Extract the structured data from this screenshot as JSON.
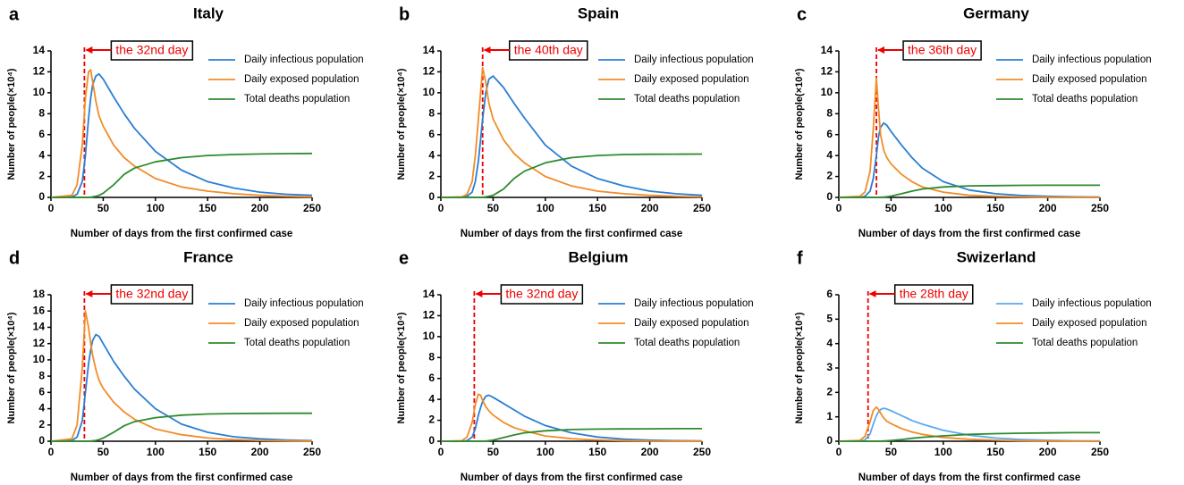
{
  "chart_data": [
    {
      "type": "line",
      "label": "a",
      "title": "Italy",
      "xlabel": "Number of days from the first confirmed case",
      "ylabel": "Number of people(×10⁴)",
      "annotation": {
        "text": "the 32nd day",
        "x": 32
      },
      "x": [
        0,
        20,
        25,
        30,
        33,
        36,
        38,
        40,
        43,
        46,
        50,
        60,
        70,
        80,
        100,
        125,
        150,
        175,
        200,
        225,
        250
      ],
      "series": [
        {
          "name": "Daily infectious population",
          "color": "#2a7fd4",
          "values": [
            0,
            0.05,
            0.3,
            1.5,
            4,
            7.5,
            9.5,
            10.8,
            11.6,
            11.8,
            11.3,
            9.6,
            8,
            6.6,
            4.4,
            2.6,
            1.5,
            0.9,
            0.5,
            0.3,
            0.2
          ]
        },
        {
          "name": "Daily exposed population",
          "color": "#f28c28",
          "values": [
            0,
            0.2,
            1.2,
            5,
            9.5,
            12,
            12.2,
            11,
            9.2,
            7.8,
            6.8,
            5,
            3.8,
            3,
            1.8,
            1,
            0.6,
            0.35,
            0.2,
            0.1,
            0.06
          ]
        },
        {
          "name": "Total deaths population",
          "color": "#2e8b2e",
          "values": [
            0,
            0,
            0,
            0,
            0,
            0,
            0.02,
            0.05,
            0.1,
            0.2,
            0.4,
            1.2,
            2.2,
            2.8,
            3.4,
            3.8,
            4,
            4.1,
            4.15,
            4.18,
            4.2
          ]
        }
      ],
      "xlim": [
        0,
        250
      ],
      "xticks": [
        0,
        50,
        100,
        150,
        200,
        250
      ],
      "ylim": [
        0,
        14
      ],
      "yticks": [
        0,
        2,
        4,
        6,
        8,
        10,
        12,
        14
      ]
    },
    {
      "type": "line",
      "label": "b",
      "title": "Spain",
      "xlabel": "Number of days from the first confirmed case",
      "ylabel": "Number of people(×10⁴)",
      "annotation": {
        "text": "the 40th day",
        "x": 40
      },
      "x": [
        0,
        20,
        25,
        30,
        33,
        36,
        38,
        40,
        43,
        46,
        50,
        60,
        70,
        80,
        100,
        125,
        150,
        175,
        200,
        225,
        250
      ],
      "series": [
        {
          "name": "Daily infectious population",
          "color": "#2a7fd4",
          "values": [
            0,
            0,
            0.1,
            0.5,
            1.5,
            3.5,
            5.5,
            7.5,
            10,
            11.3,
            11.6,
            10.5,
            9,
            7.6,
            5,
            3,
            1.8,
            1.1,
            0.6,
            0.35,
            0.2
          ]
        },
        {
          "name": "Daily exposed population",
          "color": "#f28c28",
          "values": [
            0,
            0.05,
            0.3,
            1.5,
            4,
            7.5,
            10,
            12.4,
            11,
            9,
            7.5,
            5.5,
            4.2,
            3.3,
            2,
            1.1,
            0.6,
            0.35,
            0.2,
            0.1,
            0.05
          ]
        },
        {
          "name": "Total deaths population",
          "color": "#2e8b2e",
          "values": [
            0,
            0,
            0,
            0,
            0,
            0,
            0,
            0.02,
            0.05,
            0.1,
            0.2,
            0.8,
            1.8,
            2.5,
            3.3,
            3.8,
            4,
            4.1,
            4.12,
            4.13,
            4.14
          ]
        }
      ],
      "xlim": [
        0,
        250
      ],
      "xticks": [
        0,
        50,
        100,
        150,
        200,
        250
      ],
      "ylim": [
        0,
        14
      ],
      "yticks": [
        0,
        2,
        4,
        6,
        8,
        10,
        12,
        14
      ]
    },
    {
      "type": "line",
      "label": "c",
      "title": "Germany",
      "xlabel": "Number of days from the first confirmed case",
      "ylabel": "Number of people(×10⁴)",
      "annotation": {
        "text": "the 36th day",
        "x": 36
      },
      "x": [
        0,
        20,
        25,
        30,
        33,
        36,
        38,
        40,
        43,
        46,
        50,
        60,
        70,
        80,
        100,
        125,
        150,
        175,
        200,
        225,
        250
      ],
      "series": [
        {
          "name": "Daily infectious population",
          "color": "#2a7fd4",
          "values": [
            0,
            0,
            0.1,
            0.6,
            1.8,
            4,
            5.8,
            6.7,
            7.1,
            6.9,
            6.3,
            5,
            3.8,
            2.8,
            1.5,
            0.7,
            0.35,
            0.18,
            0.1,
            0.05,
            0.03
          ]
        },
        {
          "name": "Daily exposed population",
          "color": "#f28c28",
          "values": [
            0,
            0.1,
            0.5,
            2.5,
            6.5,
            11.4,
            8.5,
            6,
            4.5,
            3.8,
            3.2,
            2.2,
            1.5,
            1,
            0.5,
            0.2,
            0.1,
            0.05,
            0.02,
            0.01,
            0
          ]
        },
        {
          "name": "Total deaths population",
          "color": "#2e8b2e",
          "values": [
            0,
            0,
            0,
            0,
            0,
            0,
            0,
            0.01,
            0.03,
            0.06,
            0.12,
            0.35,
            0.6,
            0.8,
            1,
            1.1,
            1.13,
            1.15,
            1.16,
            1.16,
            1.16
          ]
        }
      ],
      "xlim": [
        0,
        250
      ],
      "xticks": [
        0,
        50,
        100,
        150,
        200,
        250
      ],
      "ylim": [
        0,
        14
      ],
      "yticks": [
        0,
        2,
        4,
        6,
        8,
        10,
        12,
        14
      ]
    },
    {
      "type": "line",
      "label": "d",
      "title": "France",
      "xlabel": "Number of days from the first confirmed case",
      "ylabel": "Number of people(×10⁴)",
      "annotation": {
        "text": "the 32nd day",
        "x": 32
      },
      "x": [
        0,
        20,
        25,
        30,
        33,
        36,
        38,
        40,
        43,
        46,
        50,
        60,
        70,
        80,
        100,
        125,
        150,
        175,
        200,
        225,
        250
      ],
      "series": [
        {
          "name": "Daily infectious population",
          "color": "#2a7fd4",
          "values": [
            0,
            0.1,
            0.5,
            2.5,
            6,
            9.5,
            11.2,
            12.4,
            13.1,
            12.9,
            12,
            9.8,
            8,
            6.4,
            4,
            2.1,
            1.1,
            0.55,
            0.3,
            0.15,
            0.08
          ]
        },
        {
          "name": "Daily exposed population",
          "color": "#f28c28",
          "values": [
            0,
            0.3,
            2,
            9,
            16,
            14,
            12,
            10.5,
            8.8,
            7.5,
            6.5,
            4.8,
            3.6,
            2.7,
            1.5,
            0.8,
            0.4,
            0.2,
            0.1,
            0.05,
            0.03
          ]
        },
        {
          "name": "Total deaths population",
          "color": "#2e8b2e",
          "values": [
            0,
            0,
            0,
            0,
            0,
            0,
            0.02,
            0.05,
            0.1,
            0.2,
            0.4,
            1.1,
            1.9,
            2.4,
            2.9,
            3.2,
            3.35,
            3.4,
            3.42,
            3.43,
            3.44
          ]
        }
      ],
      "xlim": [
        0,
        250
      ],
      "xticks": [
        0,
        50,
        100,
        150,
        200,
        250
      ],
      "ylim": [
        0,
        18
      ],
      "yticks": [
        0,
        2,
        4,
        6,
        8,
        10,
        12,
        14,
        16,
        18
      ]
    },
    {
      "type": "line",
      "label": "e",
      "title": "Belgium",
      "xlabel": "Number of days from the first confirmed case",
      "ylabel": "Number of people(×10⁴)",
      "annotation": {
        "text": "the 32nd day",
        "x": 32
      },
      "x": [
        0,
        20,
        25,
        30,
        33,
        36,
        38,
        40,
        43,
        46,
        50,
        60,
        70,
        80,
        100,
        125,
        150,
        175,
        200,
        225,
        250
      ],
      "series": [
        {
          "name": "Daily infectious population",
          "color": "#2a7fd4",
          "values": [
            0,
            0,
            0.05,
            0.4,
            1.2,
            2.5,
            3.2,
            3.8,
            4.3,
            4.4,
            4.2,
            3.6,
            3,
            2.4,
            1.5,
            0.8,
            0.4,
            0.2,
            0.1,
            0.05,
            0.03
          ]
        },
        {
          "name": "Daily exposed population",
          "color": "#f28c28",
          "values": [
            0,
            0.05,
            0.4,
            1.8,
            3.5,
            4.5,
            4.4,
            3.9,
            3.3,
            2.9,
            2.5,
            1.8,
            1.3,
            1,
            0.5,
            0.25,
            0.12,
            0.06,
            0.03,
            0.01,
            0
          ]
        },
        {
          "name": "Total deaths population",
          "color": "#2e8b2e",
          "values": [
            0,
            0,
            0,
            0,
            0,
            0,
            0,
            0.01,
            0.02,
            0.05,
            0.1,
            0.35,
            0.6,
            0.8,
            1,
            1.12,
            1.16,
            1.18,
            1.19,
            1.2,
            1.2
          ]
        }
      ],
      "xlim": [
        0,
        250
      ],
      "xticks": [
        0,
        50,
        100,
        150,
        200,
        250
      ],
      "ylim": [
        0,
        14
      ],
      "yticks": [
        0,
        2,
        4,
        6,
        8,
        10,
        12,
        14
      ]
    },
    {
      "type": "line",
      "label": "f",
      "title": "Swizerland",
      "xlabel": "Number of days from the first confirmed case",
      "ylabel": "Number of people(×10⁴)",
      "annotation": {
        "text": "the 28th day",
        "x": 28
      },
      "x": [
        0,
        20,
        25,
        30,
        33,
        36,
        38,
        40,
        43,
        46,
        50,
        60,
        70,
        80,
        100,
        125,
        150,
        175,
        200,
        225,
        250
      ],
      "series": [
        {
          "name": "Daily infectious population",
          "color": "#5aaaf0",
          "values": [
            0,
            0.01,
            0.05,
            0.3,
            0.7,
            1.05,
            1.2,
            1.3,
            1.35,
            1.32,
            1.25,
            1.05,
            0.85,
            0.7,
            0.45,
            0.25,
            0.13,
            0.07,
            0.04,
            0.02,
            0.01
          ]
        },
        {
          "name": "Daily exposed population",
          "color": "#f28c28",
          "values": [
            0,
            0.03,
            0.2,
            0.8,
            1.25,
            1.4,
            1.3,
            1.15,
            0.95,
            0.82,
            0.72,
            0.52,
            0.38,
            0.28,
            0.15,
            0.08,
            0.04,
            0.02,
            0.01,
            0,
            0
          ]
        },
        {
          "name": "Total deaths population",
          "color": "#2e8b2e",
          "values": [
            0,
            0,
            0,
            0,
            0,
            0,
            0,
            0,
            0.01,
            0.02,
            0.03,
            0.07,
            0.12,
            0.16,
            0.22,
            0.28,
            0.31,
            0.33,
            0.34,
            0.35,
            0.35
          ]
        }
      ],
      "xlim": [
        0,
        250
      ],
      "xticks": [
        0,
        50,
        100,
        150,
        200,
        250
      ],
      "ylim": [
        0,
        6
      ],
      "yticks": [
        0,
        1,
        2,
        3,
        4,
        5,
        6
      ]
    }
  ]
}
